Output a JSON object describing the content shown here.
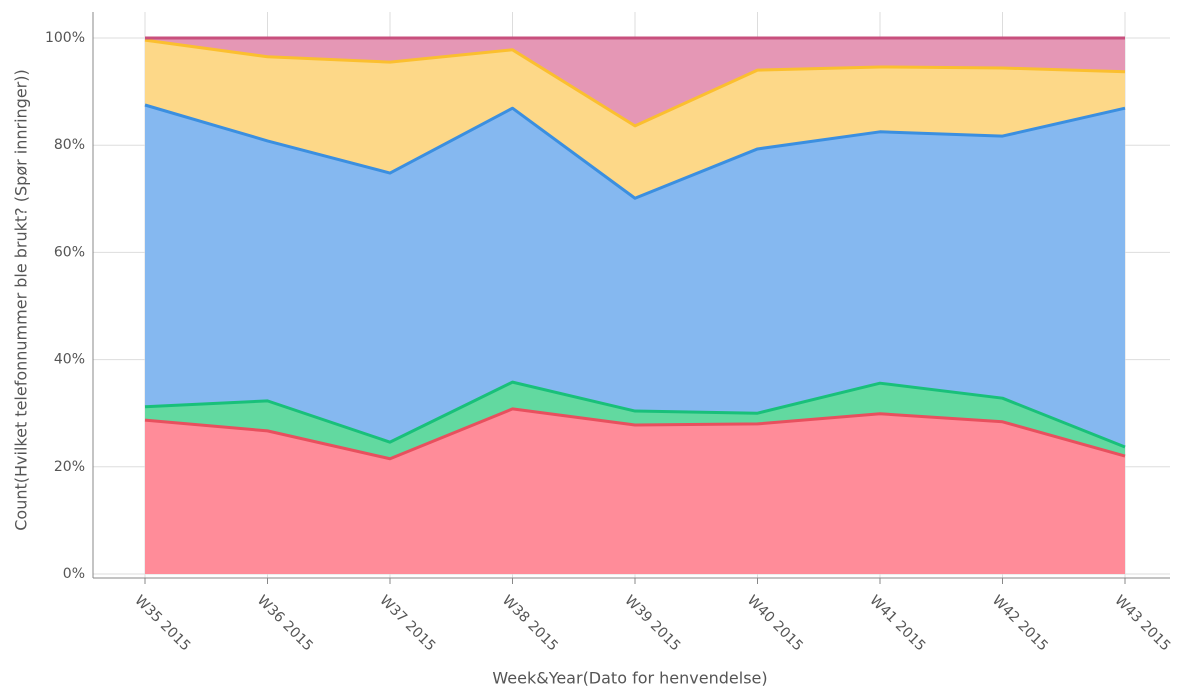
{
  "chart_data": {
    "type": "stacked_area_percent",
    "x_label": "Week&Year(Dato for henvendelse)",
    "y_label": "Count(Hvilket telefonnummer ble brukt? (Spør innringer))",
    "categories": [
      "W35 2015",
      "W36 2015",
      "W37 2015",
      "W38 2015",
      "W39 2015",
      "W40 2015",
      "W41 2015",
      "W42 2015",
      "W43 2015"
    ],
    "series": [
      {
        "color": "#ff8c99",
        "line_color": "#e8505e",
        "values": [
          28.7,
          26.7,
          21.5,
          30.8,
          27.8,
          28.0,
          29.9,
          28.4,
          22.0
        ]
      },
      {
        "color": "#62d9a0",
        "line_color": "#19c07a",
        "values": [
          2.5,
          5.6,
          3.1,
          5.0,
          2.6,
          2.0,
          5.7,
          4.4,
          1.7
        ]
      },
      {
        "color": "#85b8f0",
        "line_color": "#3b8fe0",
        "values": [
          56.3,
          48.5,
          50.2,
          51.1,
          39.7,
          49.3,
          46.9,
          48.9,
          63.2
        ]
      },
      {
        "color": "#fdd888",
        "line_color": "#fbbf2f",
        "values": [
          12.1,
          15.7,
          20.7,
          10.9,
          13.5,
          14.7,
          12.1,
          12.7,
          6.8
        ]
      },
      {
        "color": "#e597b5",
        "line_color": "#c8507e",
        "values": [
          0.4,
          3.5,
          4.5,
          2.2,
          16.4,
          6.0,
          5.4,
          5.6,
          6.3
        ]
      }
    ],
    "ylim": [
      0,
      100
    ],
    "yticks": [
      {
        "value": 0,
        "label": "0%"
      },
      {
        "value": 20,
        "label": "20%"
      },
      {
        "value": 40,
        "label": "40%"
      },
      {
        "value": 60,
        "label": "60%"
      },
      {
        "value": 80,
        "label": "80%"
      },
      {
        "value": 100,
        "label": "100%"
      }
    ],
    "grid": true
  }
}
